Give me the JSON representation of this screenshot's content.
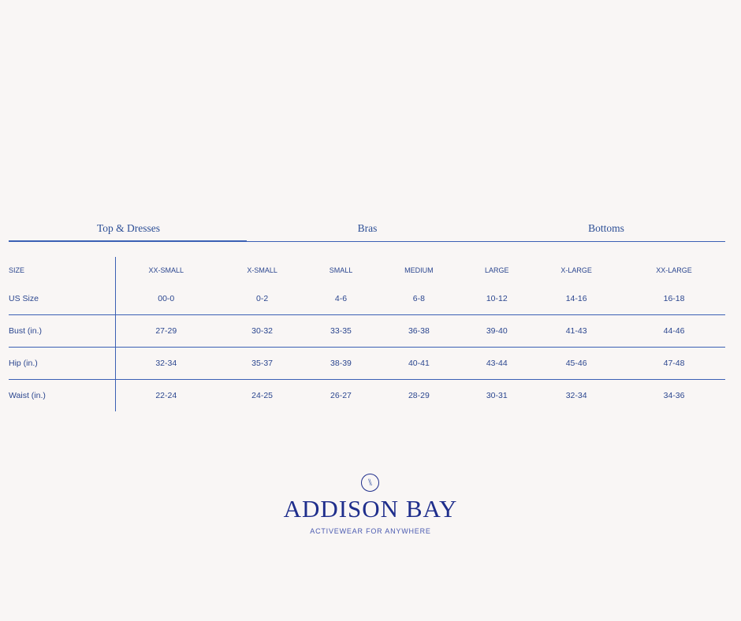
{
  "tabs": [
    {
      "label": "Top & Dresses",
      "active": true
    },
    {
      "label": "Bras",
      "active": false
    },
    {
      "label": "Bottoms",
      "active": false
    }
  ],
  "table": {
    "headers": [
      "SIZE",
      "XX-SMALL",
      "X-SMALL",
      "SMALL",
      "MEDIUM",
      "LARGE",
      "X-LARGE",
      "XX-LARGE"
    ],
    "rows": [
      [
        "US Size",
        "00-0",
        "0-2",
        "4-6",
        "6-8",
        "10-12",
        "14-16",
        "16-18"
      ],
      [
        "Bust (in.)",
        "27-29",
        "30-32",
        "33-35",
        "36-38",
        "39-40",
        "41-43",
        "44-46"
      ],
      [
        "Hip (in.)",
        "32-34",
        "35-37",
        "38-39",
        "40-41",
        "43-44",
        "45-46",
        "47-48"
      ],
      [
        "Waist (in.)",
        "22-24",
        "24-25",
        "26-27",
        "28-29",
        "30-31",
        "32-34",
        "34-36"
      ]
    ]
  },
  "logo": {
    "brand": "ADDISON BAY",
    "tagline": "ACTIVEWEAR FOR ANYWHERE",
    "mark": "\\\\"
  },
  "colors": {
    "accent": "#3b60b4",
    "text": "#2b468f",
    "brand": "#1f2e8c",
    "background": "#f9f6f5"
  }
}
